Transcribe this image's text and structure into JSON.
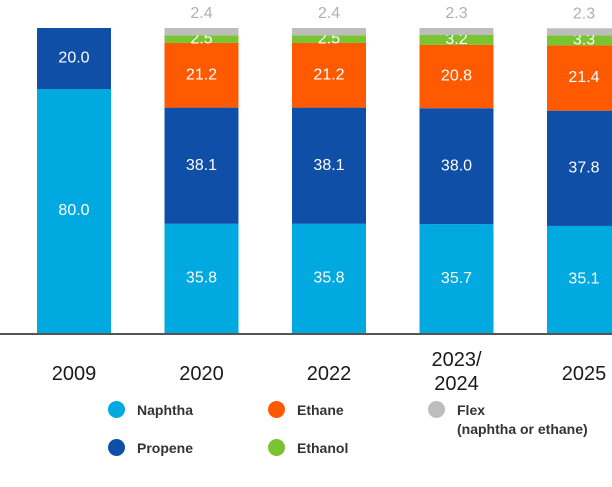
{
  "chart_data": {
    "type": "stacked_bar",
    "categories": [
      "2009",
      "2020",
      "2022",
      "2023/\n2024",
      "2025"
    ],
    "ylim": [
      0,
      100
    ],
    "series": [
      {
        "name": "Naphtha",
        "color": "#00a9e0",
        "values": [
          80.0,
          35.8,
          35.8,
          35.7,
          35.1
        ],
        "value_labels": [
          "80.0",
          "35.8",
          "35.8",
          "35.7",
          "35.1"
        ]
      },
      {
        "name": "Propene",
        "color": "#0f4fa8",
        "values": [
          20.0,
          38.1,
          38.1,
          38.0,
          37.8
        ],
        "value_labels": [
          "20.0",
          "38.1",
          "38.1",
          "38.0",
          "37.8"
        ]
      },
      {
        "name": "Ethane",
        "color": "#ff5a00",
        "values": [
          null,
          21.2,
          21.2,
          20.8,
          21.4
        ],
        "value_labels": [
          null,
          "21.2",
          "21.2",
          "20.8",
          "21.4"
        ]
      },
      {
        "name": "Ethanol",
        "color": "#78c431",
        "values": [
          null,
          2.5,
          2.5,
          3.2,
          3.3
        ],
        "value_labels": [
          null,
          "2.5",
          "2.5",
          "3.2",
          "3.3"
        ]
      },
      {
        "name": "Flex\n(naphtha or ethane)",
        "color": "#bdbdbd",
        "values": [
          null,
          2.4,
          2.4,
          2.3,
          2.3
        ],
        "value_labels": [
          null,
          "2.4",
          "2.4",
          "2.3",
          "2.3"
        ]
      }
    ]
  }
}
